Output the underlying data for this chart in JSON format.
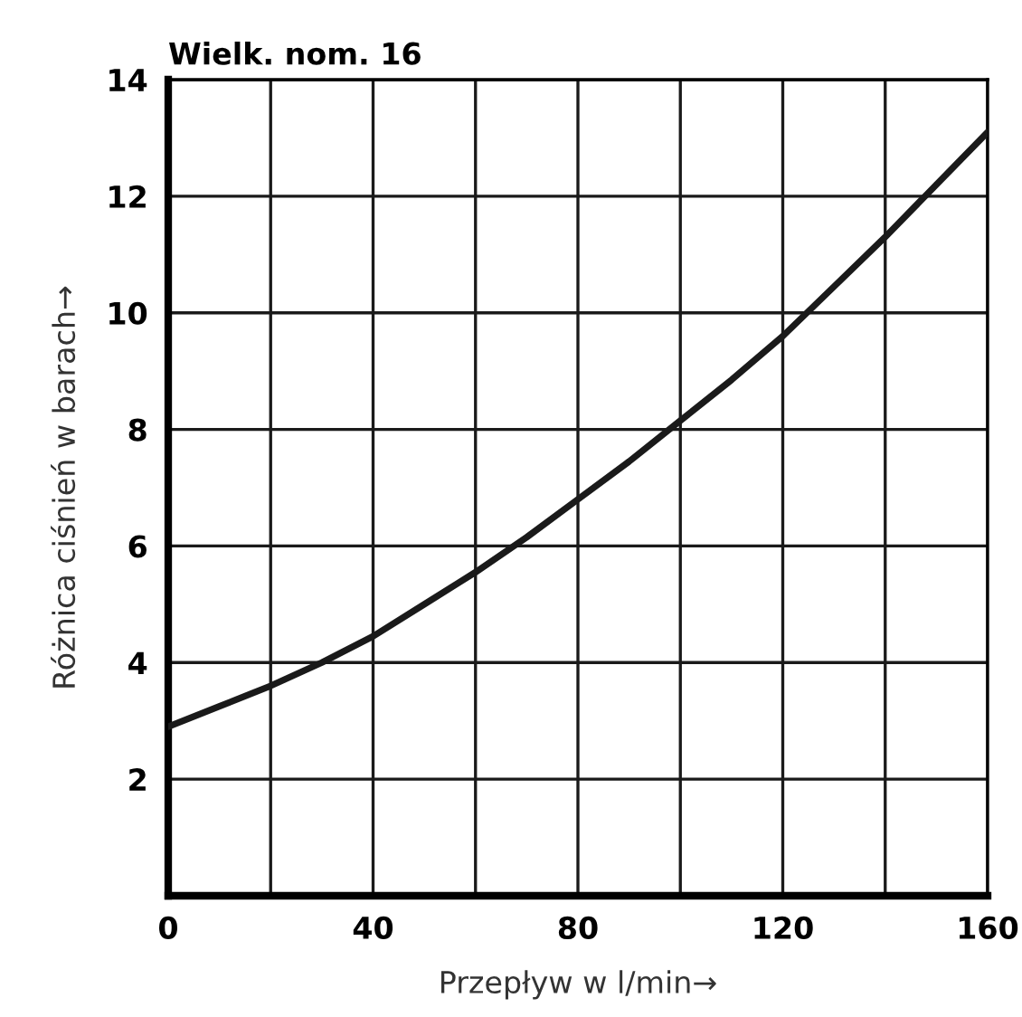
{
  "chart_data": {
    "type": "line",
    "title": "Wielk. nom. 16",
    "xlabel": "Przepływ w l/min→",
    "ylabel": "Różnica ciśnień w barach→",
    "x": [
      0,
      10,
      20,
      30,
      40,
      50,
      60,
      70,
      80,
      90,
      100,
      110,
      120,
      130,
      140,
      150,
      160
    ],
    "series": [
      {
        "color": "#1a1a1a",
        "values": [
          2.9,
          3.25,
          3.6,
          4.0,
          4.45,
          5.0,
          5.55,
          6.15,
          6.8,
          7.45,
          8.15,
          8.85,
          9.6,
          10.45,
          11.3,
          12.2,
          13.1
        ]
      }
    ],
    "xlim": [
      0,
      160
    ],
    "ylim": [
      0,
      14
    ],
    "xticks": [
      0,
      {
        "value": 20,
        "label": null
      },
      40,
      {
        "value": 60,
        "label": null
      },
      80,
      {
        "value": 100,
        "label": null
      },
      120,
      {
        "value": 140,
        "label": null
      },
      160
    ],
    "yticks": [
      {
        "value": 0,
        "label": null
      },
      2,
      4,
      6,
      8,
      10,
      12,
      14
    ],
    "grid": true,
    "legend": false,
    "marker": "none",
    "line_style": "solid"
  }
}
